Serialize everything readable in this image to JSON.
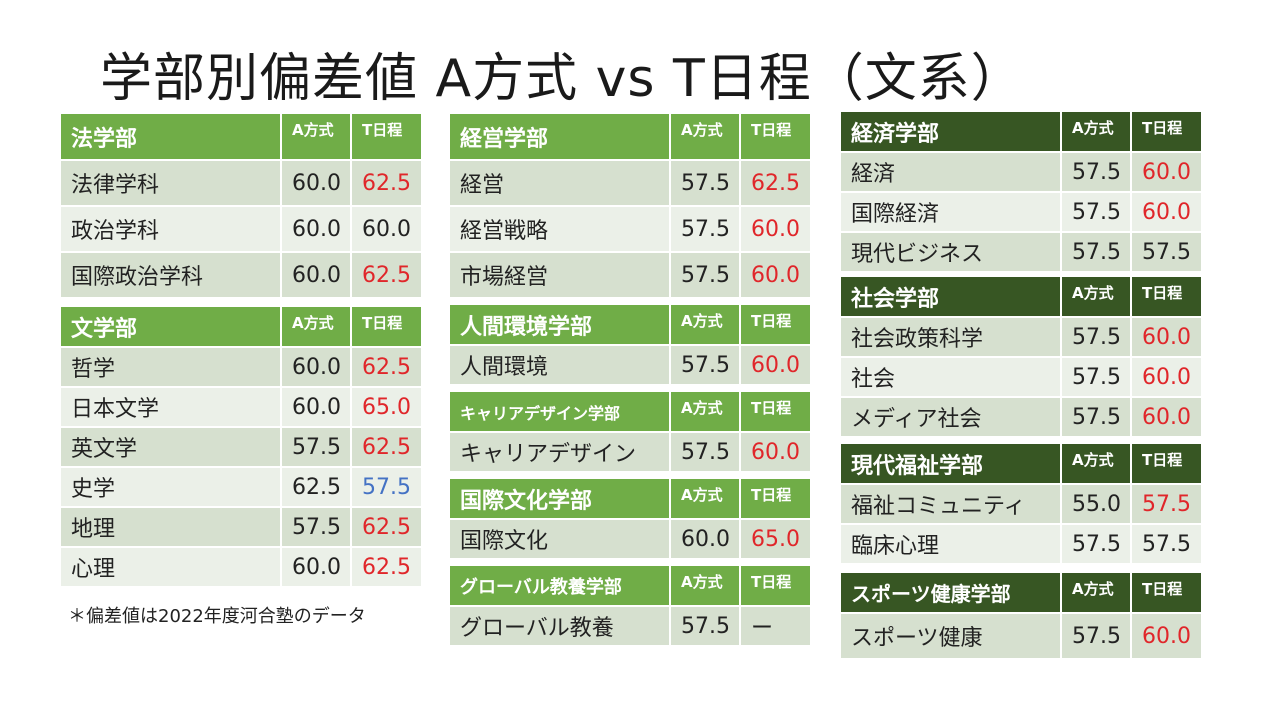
{
  "title": "学部別偏差値 A方式 vs T日程（文系）",
  "note": "＊偏差値は2022年度河合塾のデータ",
  "col_a": "A方式",
  "col_t": "T日程",
  "columns": [
    {
      "theme": "green",
      "groups": [
        {
          "name": "法学部",
          "hdr_h": 46,
          "row_h": 46,
          "name_size": 22,
          "rows": [
            {
              "name": "法律学科",
              "a": "60.0",
              "t": "62.5",
              "tc": "red"
            },
            {
              "name": "政治学科",
              "a": "60.0",
              "t": "60.0",
              "tc": "blk"
            },
            {
              "name": "国際政治学科",
              "a": "60.0",
              "t": "62.5",
              "tc": "red"
            }
          ]
        },
        {
          "name": "文学部",
          "hdr_h": 40,
          "row_h": 40,
          "name_size": 22,
          "rows": [
            {
              "name": "哲学",
              "a": "60.0",
              "t": "62.5",
              "tc": "red"
            },
            {
              "name": "日本文学",
              "a": "60.0",
              "t": "65.0",
              "tc": "red"
            },
            {
              "name": "英文学",
              "a": "57.5",
              "t": "62.5",
              "tc": "red"
            },
            {
              "name": "史学",
              "a": "62.5",
              "t": "57.5",
              "tc": "blue"
            },
            {
              "name": "地理",
              "a": "57.5",
              "t": "62.5",
              "tc": "red"
            },
            {
              "name": "心理",
              "a": "60.0",
              "t": "62.5",
              "tc": "red"
            }
          ]
        }
      ]
    },
    {
      "theme": "green",
      "groups": [
        {
          "name": "経営学部",
          "hdr_h": 46,
          "row_h": 46,
          "name_size": 22,
          "rows": [
            {
              "name": "経営",
              "a": "57.5",
              "t": "62.5",
              "tc": "red"
            },
            {
              "name": "経営戦略",
              "a": "57.5",
              "t": "60.0",
              "tc": "red"
            },
            {
              "name": "市場経営",
              "a": "57.5",
              "t": "60.0",
              "tc": "red"
            }
          ]
        },
        {
          "name": "人間環境学部",
          "hdr_h": 40,
          "row_h": 40,
          "name_size": 22,
          "rows": [
            {
              "name": "人間環境",
              "a": "57.5",
              "t": "60.0",
              "tc": "red"
            }
          ]
        },
        {
          "name": "キャリアデザイン学部",
          "hdr_h": 40,
          "row_h": 40,
          "name_size": 16,
          "rows": [
            {
              "name": "キャリアデザイン",
              "a": "57.5",
              "t": "60.0",
              "tc": "red"
            }
          ]
        },
        {
          "name": "国際文化学部",
          "hdr_h": 40,
          "row_h": 40,
          "name_size": 22,
          "rows": [
            {
              "name": "国際文化",
              "a": "60.0",
              "t": "65.0",
              "tc": "red"
            }
          ]
        },
        {
          "name": "グローバル教養学部",
          "hdr_h": 40,
          "row_h": 40,
          "name_size": 18,
          "rows": [
            {
              "name": "グローバル教養",
              "a": "57.5",
              "t": "ー",
              "tc": "blk"
            }
          ]
        }
      ]
    },
    {
      "theme": "dark",
      "groups": [
        {
          "name": "経済学部",
          "hdr_h": 40,
          "row_h": 40,
          "name_size": 22,
          "rows": [
            {
              "name": "経済",
              "a": "57.5",
              "t": "60.0",
              "tc": "red"
            },
            {
              "name": "国際経済",
              "a": "57.5",
              "t": "60.0",
              "tc": "red"
            },
            {
              "name": "現代ビジネス",
              "a": "57.5",
              "t": "57.5",
              "tc": "blk"
            }
          ]
        },
        {
          "name": "社会学部",
          "hdr_h": 40,
          "row_h": 40,
          "name_size": 22,
          "rows": [
            {
              "name": "社会政策科学",
              "a": "57.5",
              "t": "60.0",
              "tc": "red"
            },
            {
              "name": "社会",
              "a": "57.5",
              "t": "60.0",
              "tc": "red"
            },
            {
              "name": "メディア社会",
              "a": "57.5",
              "t": "60.0",
              "tc": "red"
            }
          ]
        },
        {
          "name": "現代福祉学部",
          "hdr_h": 40,
          "row_h": 40,
          "name_size": 22,
          "rows": [
            {
              "name": "福祉コミュニティ",
              "a": "55.0",
              "t": "57.5",
              "tc": "red"
            },
            {
              "name": "臨床心理",
              "a": "57.5",
              "t": "57.5",
              "tc": "blk"
            }
          ]
        },
        {
          "name": "スポーツ健康学部",
          "hdr_h": 40,
          "row_h": 46,
          "name_size": 20,
          "rows": [
            {
              "name": "スポーツ健康",
              "a": "57.5",
              "t": "60.0",
              "tc": "red"
            }
          ]
        }
      ]
    }
  ]
}
